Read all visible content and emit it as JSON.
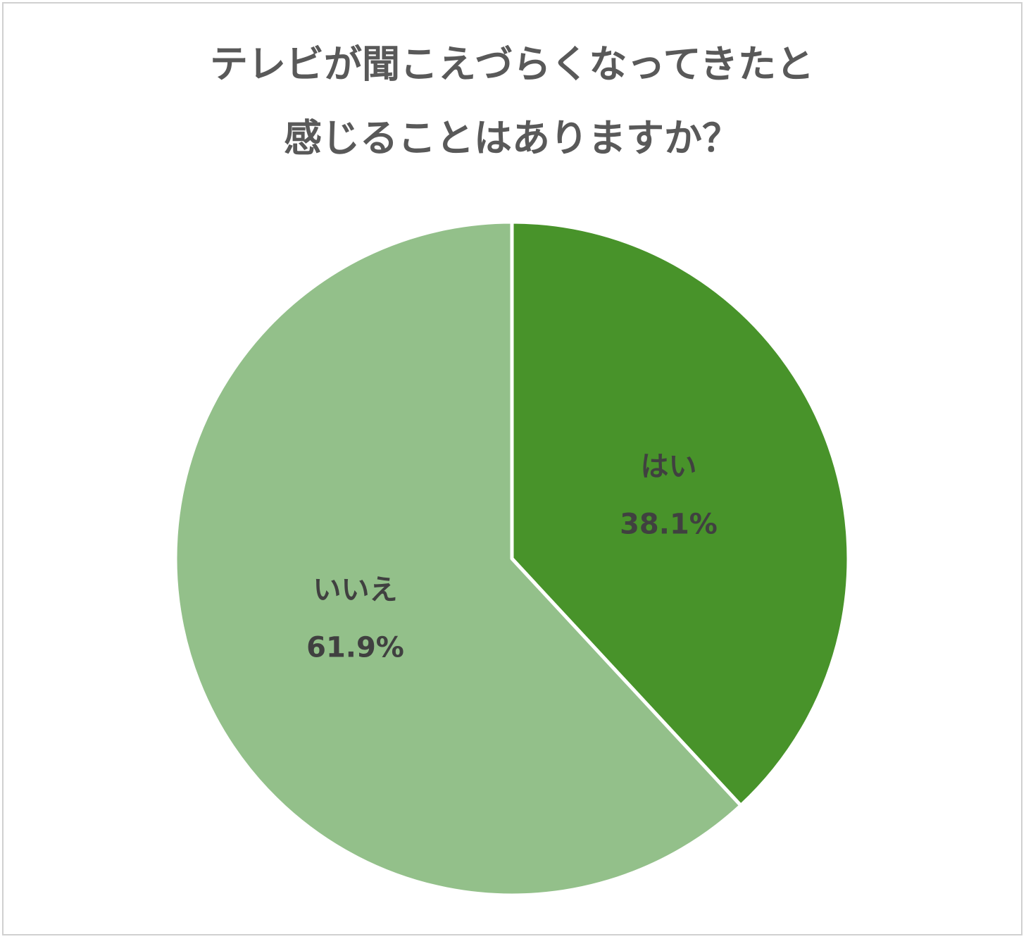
{
  "chart_data": {
    "type": "pie",
    "title": [
      "テレビが聞こえづらくなってきたと",
      "感じることはありますか？"
    ],
    "categories": [
      "はい",
      "いいえ"
    ],
    "values": [
      38.1,
      61.9
    ],
    "value_labels": [
      "38.1%",
      "61.9%"
    ],
    "colors": [
      "#48932a",
      "#93c08a"
    ]
  }
}
